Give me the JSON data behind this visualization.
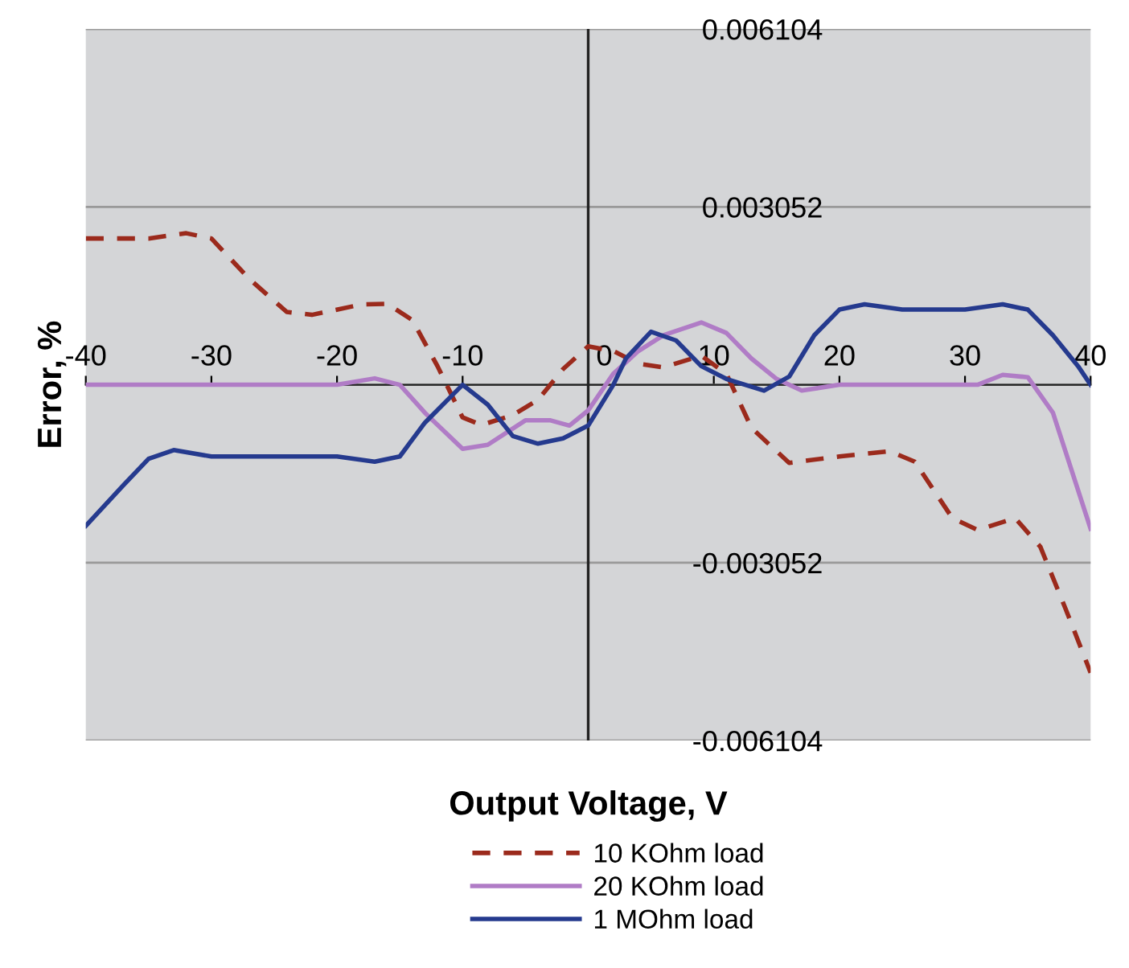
{
  "chart_data": {
    "type": "line",
    "xlabel": "Output Voltage, V",
    "ylabel": "Error, %",
    "xlim": [
      -40,
      40
    ],
    "xticks": [
      -40,
      -30,
      -20,
      -10,
      0,
      10,
      20,
      30,
      40
    ],
    "ylim": [
      -0.006104,
      0.006104
    ],
    "yticks": [
      0.006104,
      0.003052,
      {
        "value": 0,
        "label": null
      },
      -0.003052,
      -0.006104
    ],
    "grid": "y",
    "legend": "bottom",
    "series": [
      {
        "name": "10 KOhm load",
        "color": "#9b2a1c",
        "line_style": "dashed",
        "x": [
          -40,
          -35,
          -32,
          -30,
          -27,
          -24,
          -22,
          -18,
          -16,
          -14,
          -12,
          -10,
          -8.5,
          -6,
          -4,
          -2,
          0,
          2,
          4,
          6,
          9,
          11,
          13,
          16,
          20,
          24,
          26,
          29,
          31,
          34,
          36,
          38,
          40
        ],
        "values": [
          0.00251,
          0.00251,
          0.0026,
          0.00251,
          0.00182,
          0.00125,
          0.0012,
          0.00138,
          0.00139,
          0.00111,
          0.00032,
          -0.00056,
          -0.00069,
          -0.00052,
          -0.00026,
          0.00027,
          0.00066,
          0.00058,
          0.00036,
          0.0003,
          0.0005,
          0.00019,
          -0.00074,
          -0.00134,
          -0.00123,
          -0.00114,
          -0.00132,
          -0.00229,
          -0.00249,
          -0.00229,
          -0.00278,
          -0.00384,
          -0.00494
        ]
      },
      {
        "name": "20 KOhm load",
        "color": "#b07cc6",
        "line_style": "solid",
        "x": [
          -40,
          -20,
          -17,
          -15,
          -13,
          -10,
          -8,
          -5,
          -3,
          -1.5,
          0,
          2,
          4,
          6,
          9,
          11,
          13,
          15,
          17,
          20,
          31,
          33,
          35,
          37,
          40
        ],
        "values": [
          0,
          0,
          0.00011,
          0,
          -0.00048,
          -0.0011,
          -0.00103,
          -0.00061,
          -0.00061,
          -0.0007,
          -0.00044,
          0.00019,
          0.00058,
          0.00085,
          0.00107,
          0.00089,
          0.00045,
          0.0001,
          -0.0001,
          0,
          0,
          0.00017,
          0.00013,
          -0.00048,
          -0.00247
        ]
      },
      {
        "name": "1 MOhm load",
        "color": "#253a8e",
        "line_style": "solid",
        "x": [
          -40,
          -37,
          -35,
          -33,
          -30,
          -20,
          -17,
          -15,
          -13,
          -10,
          -8,
          -6,
          -4,
          -2,
          0,
          2,
          3,
          5,
          7,
          9,
          11,
          14,
          16,
          18,
          20,
          22,
          25,
          30,
          33,
          35,
          37,
          39,
          40
        ],
        "values": [
          -0.00242,
          -0.00172,
          -0.00127,
          -0.00112,
          -0.00123,
          -0.00123,
          -0.00132,
          -0.00123,
          -0.00065,
          0,
          -0.00034,
          -0.00088,
          -0.00101,
          -0.00092,
          -0.0007,
          0,
          0.00045,
          0.00091,
          0.00076,
          0.00032,
          0.0001,
          -0.0001,
          0.00014,
          0.00085,
          0.00129,
          0.00138,
          0.00129,
          0.00129,
          0.00138,
          0.00129,
          0.00085,
          0.00032,
          0
        ]
      }
    ]
  }
}
